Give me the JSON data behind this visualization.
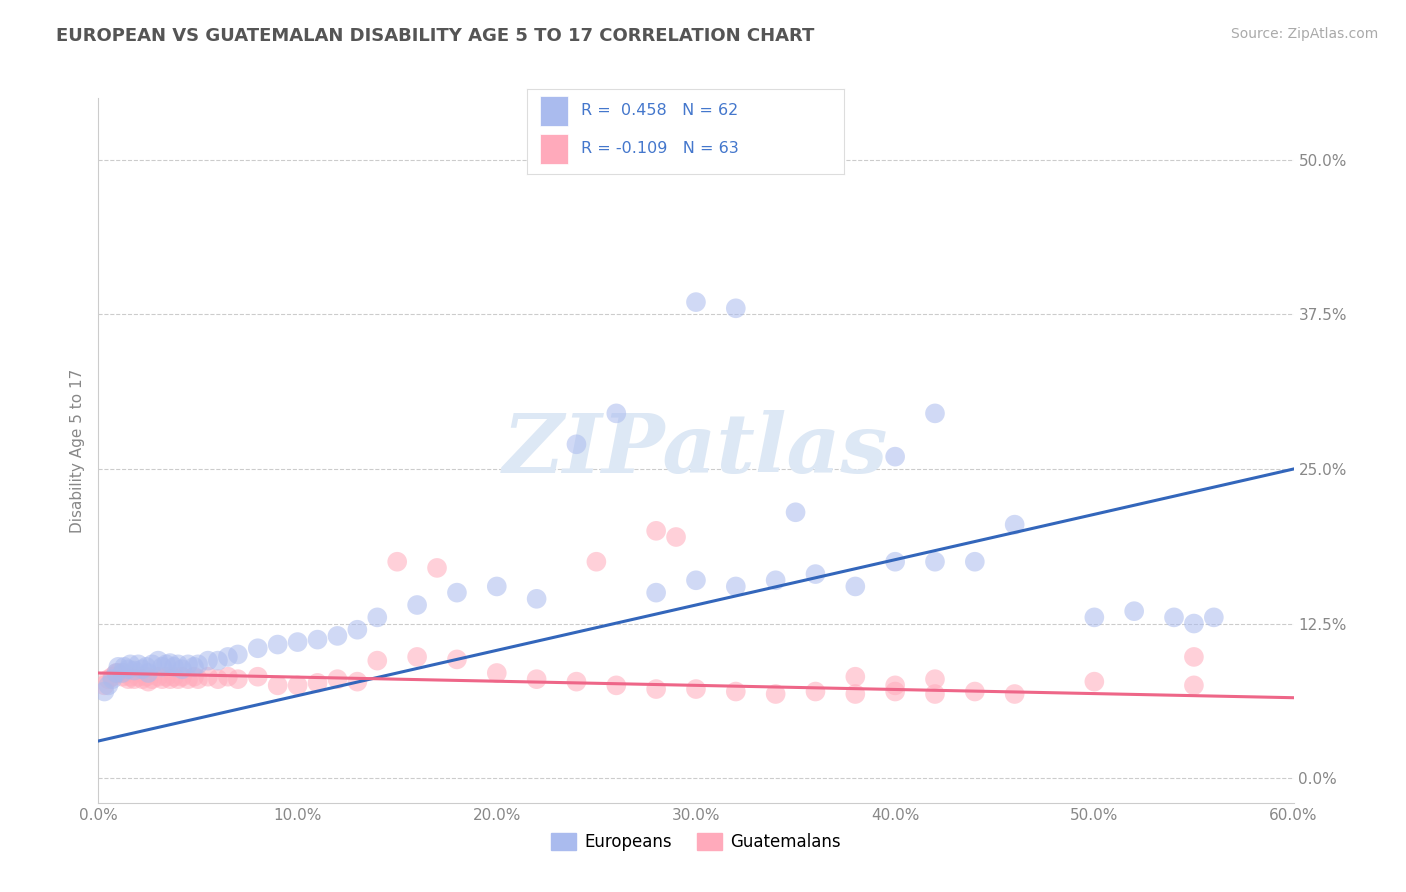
{
  "title": "EUROPEAN VS GUATEMALAN DISABILITY AGE 5 TO 17 CORRELATION CHART",
  "source_text": "Source: ZipAtlas.com",
  "ylabel": "Disability Age 5 to 17",
  "xmin": 0.0,
  "xmax": 0.6,
  "ymin": -0.02,
  "ymax": 0.55,
  "xticks": [
    0.0,
    0.1,
    0.2,
    0.3,
    0.4,
    0.5,
    0.6
  ],
  "xticklabels": [
    "0.0%",
    "10.0%",
    "20.0%",
    "30.0%",
    "40.0%",
    "50.0%",
    "60.0%"
  ],
  "ytick_positions": [
    0.0,
    0.125,
    0.25,
    0.375,
    0.5
  ],
  "ytick_labels": [
    "0.0%",
    "12.5%",
    "25.0%",
    "37.5%",
    "50.0%"
  ],
  "grid_color": "#cccccc",
  "background_color": "#ffffff",
  "european_color": "#aabbee",
  "guatemalan_color": "#ffaabb",
  "european_R": 0.458,
  "european_N": 62,
  "guatemalan_R": -0.109,
  "guatemalan_N": 63,
  "european_line_color": "#3366bb",
  "guatemalan_line_color": "#ee6688",
  "watermark_text": "ZIPatlas",
  "watermark_color": "#dde8f5",
  "legend_label_european": "Europeans",
  "legend_label_guatemalan": "Guatemalans",
  "legend_text_color": "#4477cc",
  "title_color": "#555555",
  "tick_color": "#888888",
  "scatter_size": 200,
  "scatter_alpha": 0.55,
  "line_width": 2.2,
  "euro_line_start_y": 0.03,
  "euro_line_end_y": 0.25,
  "guat_line_start_y": 0.085,
  "guat_line_end_y": 0.065
}
